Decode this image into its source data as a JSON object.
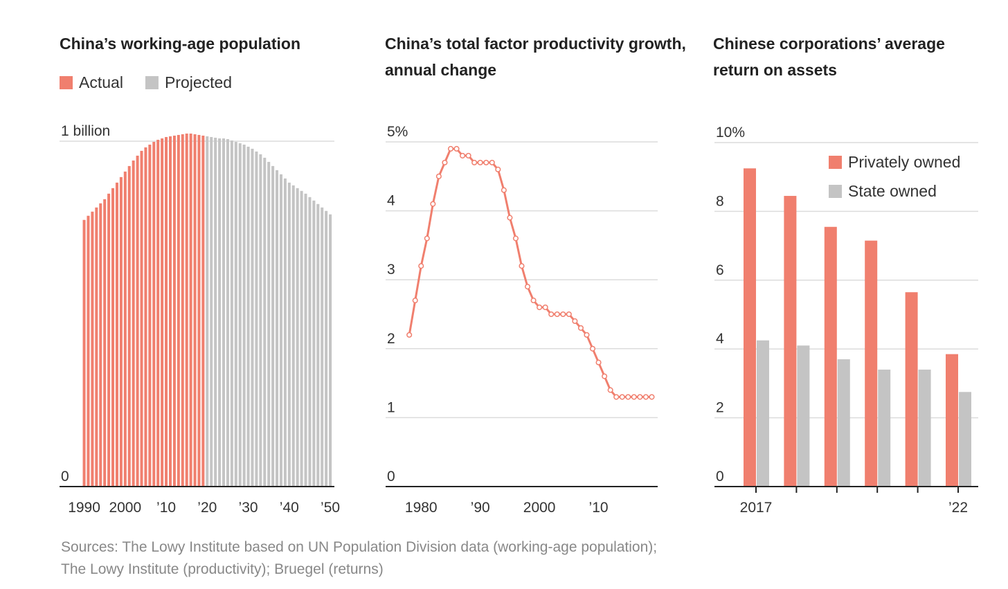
{
  "chart_data": [
    {
      "type": "bar",
      "title": "China’s working-age population",
      "x": [
        1990,
        1991,
        1992,
        1993,
        1994,
        1995,
        1996,
        1997,
        1998,
        1999,
        2000,
        2001,
        2002,
        2003,
        2004,
        2005,
        2006,
        2007,
        2008,
        2009,
        2010,
        2011,
        2012,
        2013,
        2014,
        2015,
        2016,
        2017,
        2018,
        2019,
        2020,
        2021,
        2022,
        2023,
        2024,
        2025,
        2026,
        2027,
        2028,
        2029,
        2030,
        2031,
        2032,
        2033,
        2034,
        2035,
        2036,
        2037,
        2038,
        2039,
        2040,
        2041,
        2042,
        2043,
        2044,
        2045,
        2046,
        2047,
        2048,
        2049,
        2050
      ],
      "series": [
        {
          "name": "Actual",
          "color": "#f07f6e",
          "values": [
            0.772,
            0.784,
            0.796,
            0.808,
            0.82,
            0.832,
            0.848,
            0.864,
            0.88,
            0.896,
            0.912,
            0.928,
            0.944,
            0.958,
            0.972,
            0.982,
            0.99,
            0.998,
            1.004,
            1.008,
            1.012,
            1.014,
            1.016,
            1.018,
            1.02,
            1.022,
            1.022,
            1.02,
            1.018,
            1.016,
            null,
            null,
            null,
            null,
            null,
            null,
            null,
            null,
            null,
            null,
            null,
            null,
            null,
            null,
            null,
            null,
            null,
            null,
            null,
            null,
            null,
            null,
            null,
            null,
            null,
            null,
            null,
            null,
            null,
            null,
            null
          ]
        },
        {
          "name": "Projected",
          "color": "#c4c4c4",
          "values": [
            null,
            null,
            null,
            null,
            null,
            null,
            null,
            null,
            null,
            null,
            null,
            null,
            null,
            null,
            null,
            null,
            null,
            null,
            null,
            null,
            null,
            null,
            null,
            null,
            null,
            null,
            null,
            null,
            null,
            null,
            1.014,
            1.012,
            1.01,
            1.008,
            1.008,
            1.006,
            1.002,
            0.998,
            0.994,
            0.99,
            0.984,
            0.978,
            0.97,
            0.962,
            0.952,
            0.94,
            0.928,
            0.916,
            0.904,
            0.892,
            0.88,
            0.872,
            0.864,
            0.856,
            0.848,
            0.838,
            0.828,
            0.818,
            0.808,
            0.798,
            0.788
          ]
        }
      ],
      "xlim": [
        1984,
        2051
      ],
      "xticks": [
        1990,
        2000,
        {
          "value": 2010,
          "label": "’10"
        },
        {
          "value": 2020,
          "label": "’20"
        },
        {
          "value": 2030,
          "label": "’30"
        },
        {
          "value": 2040,
          "label": "’40"
        },
        {
          "value": 2050,
          "label": "’50"
        }
      ],
      "ylim": [
        0,
        1.05
      ],
      "yticks": [
        0,
        {
          "value": 1,
          "label": "1 billion"
        }
      ],
      "grid": true,
      "legend": "top-left"
    },
    {
      "type": "line",
      "title": "China’s total factor productivity growth, annual change",
      "x": [
        1978,
        1979,
        1980,
        1981,
        1982,
        1983,
        1984,
        1985,
        1986,
        1987,
        1988,
        1989,
        1990,
        1991,
        1992,
        1993,
        1994,
        1995,
        1996,
        1997,
        1998,
        1999,
        2000,
        2001,
        2002,
        2003,
        2004,
        2005,
        2006,
        2007,
        2008,
        2009,
        2010,
        2011,
        2012,
        2013,
        2014,
        2015,
        2016,
        2017,
        2018,
        2019
      ],
      "series": [
        {
          "name": "Total factor productivity growth",
          "color": "#f07f6e",
          "values": [
            2.2,
            2.7,
            3.2,
            3.6,
            4.1,
            4.5,
            4.7,
            4.9,
            4.9,
            4.8,
            4.8,
            4.7,
            4.7,
            4.7,
            4.7,
            4.6,
            4.3,
            3.9,
            3.6,
            3.2,
            2.9,
            2.7,
            2.6,
            2.6,
            2.5,
            2.5,
            2.5,
            2.5,
            2.4,
            2.3,
            2.2,
            2.0,
            1.8,
            1.6,
            1.4,
            1.3,
            1.3,
            1.3,
            1.3,
            1.3,
            1.3,
            1.3
          ]
        }
      ],
      "xlim": [
        1974,
        2020
      ],
      "xticks": [
        1980,
        {
          "value": 1990,
          "label": "’90"
        },
        2000,
        {
          "value": 2010,
          "label": "’10"
        }
      ],
      "ylim": [
        0,
        5
      ],
      "yticks": [
        0,
        1,
        2,
        3,
        4,
        {
          "value": 5,
          "label": "5%"
        }
      ],
      "grid": true
    },
    {
      "type": "bar",
      "title": "Chinese corporations’ average return on assets",
      "categories": [
        "2017",
        null,
        null,
        null,
        null,
        "’22"
      ],
      "series": [
        {
          "name": "Privately owned",
          "color": "#f07f6e",
          "values": [
            9.25,
            8.45,
            7.55,
            7.15,
            5.65,
            3.85
          ]
        },
        {
          "name": "State owned",
          "color": "#c4c4c4",
          "values": [
            4.25,
            4.1,
            3.7,
            3.4,
            3.4,
            2.75
          ]
        }
      ],
      "ylim": [
        0,
        10
      ],
      "yticks": [
        0,
        2,
        4,
        6,
        8,
        {
          "value": 10,
          "label": "10%"
        }
      ],
      "grid": true,
      "legend": "top-right"
    }
  ],
  "source": [
    "Sources: The Lowy Institute based on UN Population Division data (working-age population);",
    "The Lowy Institute (productivity); Bruegel (returns)"
  ]
}
